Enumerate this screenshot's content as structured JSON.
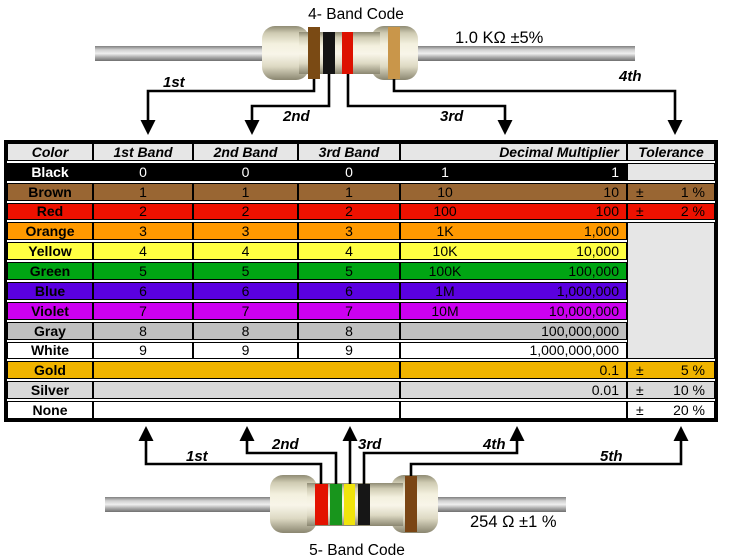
{
  "top_diagram": {
    "title": "4- Band Code",
    "value_label": "1.0 KΩ ±5%",
    "bands": [
      {
        "name": "brown",
        "color": "#7a4a14"
      },
      {
        "name": "black",
        "color": "#141414"
      },
      {
        "name": "red",
        "color": "#dd1100"
      },
      {
        "name": "gold",
        "color": "#c9964a"
      }
    ],
    "arrows": [
      {
        "label": "1st"
      },
      {
        "label": "2nd"
      },
      {
        "label": "3rd"
      },
      {
        "label": "4th"
      }
    ]
  },
  "table": {
    "headers": [
      "Color",
      "1st Band",
      "2nd Band",
      "3rd Band",
      "Decimal Multiplier",
      "Tolerance"
    ],
    "empty_cell_color": "#e6e6e6",
    "rows": [
      {
        "name": "Black",
        "bg": "#000000",
        "fg": "#ffffff",
        "b1": "0",
        "b2": "0",
        "b3": "0",
        "mshort": "1",
        "mfull": "1",
        "tol": null,
        "tol_bg": "#e6e6e6"
      },
      {
        "name": "Brown",
        "bg": "#996633",
        "b1": "1",
        "b2": "1",
        "b3": "1",
        "mshort": "10",
        "mfull": "10",
        "tol": {
          "pm": "±",
          "val": "1 %"
        }
      },
      {
        "name": "Red",
        "bg": "#ee1100",
        "b1": "2",
        "b2": "2",
        "b3": "2",
        "mshort": "100",
        "mfull": "100",
        "tol": {
          "pm": "±",
          "val": "2 %"
        }
      },
      {
        "name": "Orange",
        "bg": "#ff9900",
        "b1": "3",
        "b2": "3",
        "b3": "3",
        "mshort": "1K",
        "mfull": "1,000",
        "tolMerge": "start"
      },
      {
        "name": "Yellow",
        "bg": "#ffff42",
        "b1": "4",
        "b2": "4",
        "b3": "4",
        "mshort": "10K",
        "mfull": "10,000",
        "tolMerge": "skip"
      },
      {
        "name": "Green",
        "bg": "#00a513",
        "b1": "5",
        "b2": "5",
        "b3": "5",
        "mshort": "100K",
        "mfull": "100,000",
        "tolMerge": "skip"
      },
      {
        "name": "Blue",
        "bg": "#5a00e0",
        "b1": "6",
        "b2": "6",
        "b3": "6",
        "mshort": "1M",
        "mfull": "1,000,000",
        "tolMerge": "skip"
      },
      {
        "name": "Violet",
        "bg": "#cc00f0",
        "b1": "7",
        "b2": "7",
        "b3": "7",
        "mshort": "10M",
        "mfull": "10,000,000",
        "tolMerge": "skip"
      },
      {
        "name": "Gray",
        "bg": "#c0c0c0",
        "b1": "8",
        "b2": "8",
        "b3": "8",
        "mshort": "",
        "mfull": "100,000,000",
        "tolMerge": "skip"
      },
      {
        "name": "White",
        "bg": "#ffffff",
        "b1": "9",
        "b2": "9",
        "b3": "9",
        "mshort": "",
        "mfull": "1,000,000,000",
        "tolMerge": "skip"
      },
      {
        "name": "Gold",
        "bg": "#f0b400",
        "merged": true,
        "mshort": "",
        "mfull": "0.1",
        "tol": {
          "pm": "±",
          "val": "5 %"
        }
      },
      {
        "name": "Silver",
        "bg": "#d9d9d9",
        "merged": true,
        "mshort": "",
        "mfull": "0.01",
        "tol": {
          "pm": "±",
          "val": "10 %"
        }
      },
      {
        "name": "None",
        "bg": "#ffffff",
        "merged": true,
        "mshort": "",
        "mfull": "",
        "tol": {
          "pm": "±",
          "val": "20 %"
        }
      }
    ]
  },
  "bottom_diagram": {
    "title": "5- Band Code",
    "value_label": "254 Ω ±1 %",
    "bands": [
      {
        "name": "red",
        "color": "#e31200"
      },
      {
        "name": "green",
        "color": "#18951c"
      },
      {
        "name": "yellow",
        "color": "#f0e40c"
      },
      {
        "name": "black",
        "color": "#161616"
      },
      {
        "name": "brown",
        "color": "#7a4514"
      }
    ],
    "arrows": [
      {
        "label": "1st"
      },
      {
        "label": "2nd"
      },
      {
        "label": "3rd"
      },
      {
        "label": "4th"
      },
      {
        "label": "5th"
      }
    ]
  }
}
